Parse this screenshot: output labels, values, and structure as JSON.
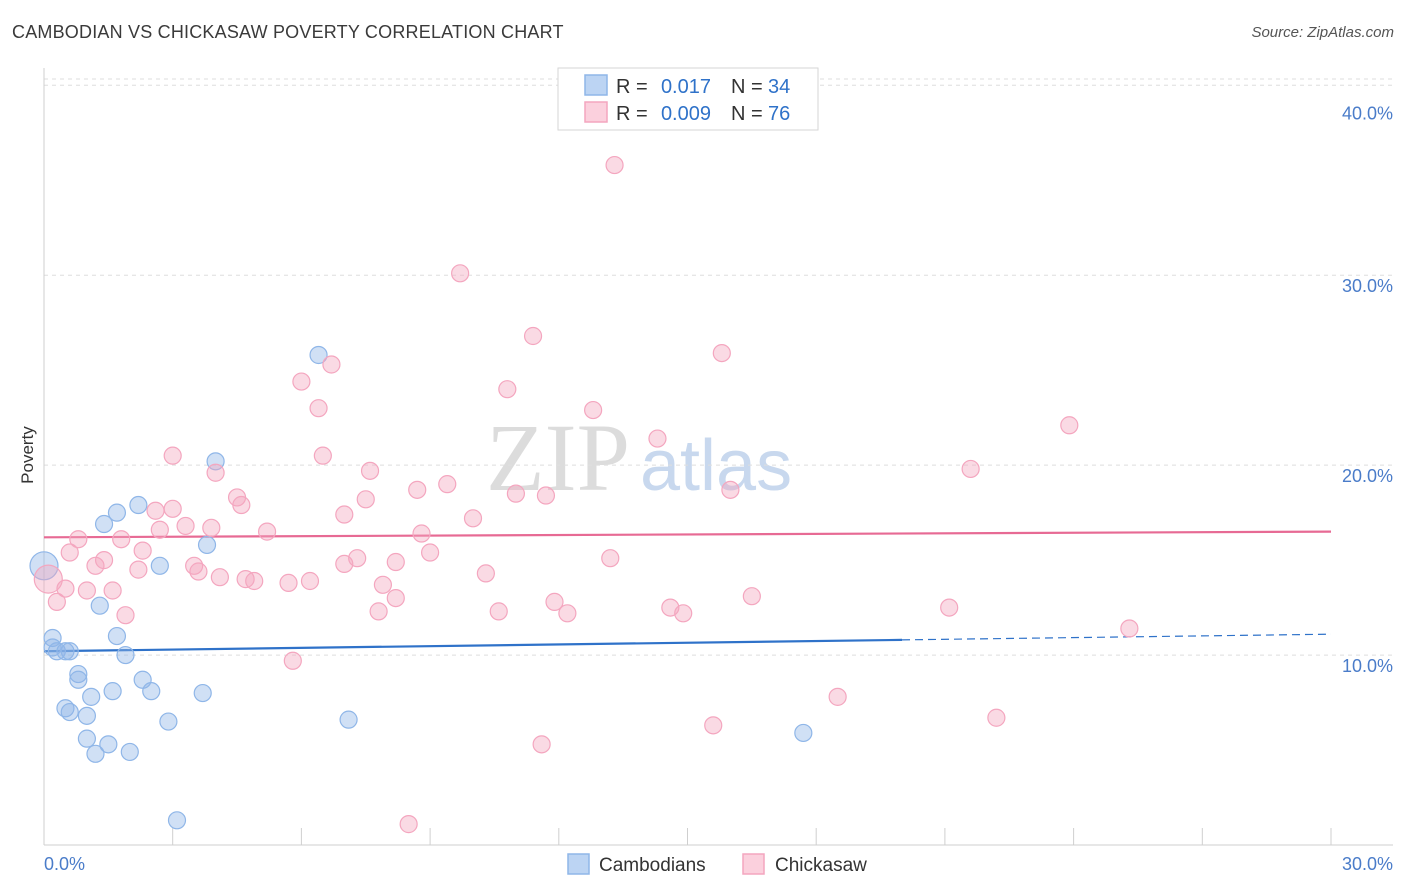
{
  "chart_data": {
    "type": "scatter",
    "title": "CAMBODIAN VS CHICKASAW POVERTY CORRELATION CHART",
    "source": "Source: ZipAtlas.com",
    "ylabel": "Poverty",
    "xlabel": "",
    "xlim": [
      0,
      30
    ],
    "ylim": [
      0,
      40.7
    ],
    "x_tick_labels": [
      "0.0%",
      "30.0%"
    ],
    "y_ticks": [
      {
        "value": 10,
        "label": "10.0%"
      },
      {
        "value": 20,
        "label": "20.0%"
      },
      {
        "value": 30,
        "label": "30.0%"
      },
      {
        "value": 40,
        "label": "40.0%"
      }
    ],
    "watermark": {
      "zip": "ZIP",
      "atlas": "atlas"
    },
    "legend": [
      {
        "r_label": "R =",
        "r_value": "0.017",
        "n_label": "N =",
        "n_value": "34"
      },
      {
        "r_label": "R =",
        "r_value": "0.009",
        "n_label": "N =",
        "n_value": "76"
      }
    ],
    "series": [
      {
        "name": "Cambodians",
        "color": "#8fb6e8",
        "line_color": "#2f72c9",
        "trend": {
          "x0": 0,
          "y0": 10.2,
          "x1": 20,
          "y1": 10.8,
          "dash_x1": 30,
          "dash_y1": 11.1
        },
        "points": [
          [
            0.0,
            14.7
          ],
          [
            0.2,
            10.9
          ],
          [
            0.2,
            10.4
          ],
          [
            0.3,
            10.2
          ],
          [
            0.5,
            10.2
          ],
          [
            0.6,
            10.2
          ],
          [
            0.8,
            9.0
          ],
          [
            0.8,
            8.7
          ],
          [
            0.5,
            7.2
          ],
          [
            0.6,
            7.0
          ],
          [
            1.0,
            6.8
          ],
          [
            1.1,
            7.8
          ],
          [
            1.0,
            5.6
          ],
          [
            1.2,
            4.8
          ],
          [
            1.5,
            5.3
          ],
          [
            2.0,
            4.9
          ],
          [
            1.3,
            12.6
          ],
          [
            1.4,
            16.9
          ],
          [
            1.7,
            17.5
          ],
          [
            1.7,
            11.0
          ],
          [
            1.9,
            10.0
          ],
          [
            2.2,
            17.9
          ],
          [
            2.3,
            8.7
          ],
          [
            2.5,
            8.1
          ],
          [
            2.7,
            14.7
          ],
          [
            1.6,
            8.1
          ],
          [
            2.9,
            6.5
          ],
          [
            3.1,
            1.3
          ],
          [
            3.7,
            8.0
          ],
          [
            3.8,
            15.8
          ],
          [
            4.0,
            20.2
          ],
          [
            6.4,
            25.8
          ],
          [
            7.1,
            6.6
          ],
          [
            17.7,
            5.9
          ]
        ]
      },
      {
        "name": "Chickasaw",
        "color": "#f4a6bf",
        "line_color": "#e76a94",
        "trend": {
          "x0": 0,
          "y0": 16.2,
          "x1": 30,
          "y1": 16.5
        },
        "points": [
          [
            0.1,
            14.0
          ],
          [
            0.3,
            12.8
          ],
          [
            0.5,
            13.5
          ],
          [
            0.6,
            15.4
          ],
          [
            0.8,
            16.1
          ],
          [
            1.0,
            13.4
          ],
          [
            1.2,
            14.7
          ],
          [
            1.4,
            15.0
          ],
          [
            1.6,
            13.4
          ],
          [
            1.8,
            16.1
          ],
          [
            1.9,
            12.1
          ],
          [
            2.2,
            14.5
          ],
          [
            2.3,
            15.5
          ],
          [
            2.6,
            17.6
          ],
          [
            2.7,
            16.6
          ],
          [
            3.0,
            17.7
          ],
          [
            3.0,
            20.5
          ],
          [
            3.3,
            16.8
          ],
          [
            3.5,
            14.7
          ],
          [
            3.6,
            14.4
          ],
          [
            3.9,
            16.7
          ],
          [
            4.0,
            19.6
          ],
          [
            4.1,
            14.1
          ],
          [
            4.5,
            18.3
          ],
          [
            4.6,
            17.9
          ],
          [
            4.7,
            14.0
          ],
          [
            4.9,
            13.9
          ],
          [
            5.2,
            16.5
          ],
          [
            5.7,
            13.8
          ],
          [
            5.8,
            9.7
          ],
          [
            6.0,
            24.4
          ],
          [
            6.2,
            13.9
          ],
          [
            6.4,
            23.0
          ],
          [
            6.5,
            20.5
          ],
          [
            6.7,
            25.3
          ],
          [
            7.0,
            14.8
          ],
          [
            7.0,
            17.4
          ],
          [
            7.3,
            15.1
          ],
          [
            7.5,
            18.2
          ],
          [
            7.6,
            19.7
          ],
          [
            7.8,
            12.3
          ],
          [
            7.9,
            13.7
          ],
          [
            8.2,
            13.0
          ],
          [
            8.2,
            14.9
          ],
          [
            8.5,
            1.1
          ],
          [
            8.7,
            18.7
          ],
          [
            8.8,
            16.4
          ],
          [
            9.0,
            15.4
          ],
          [
            9.4,
            19.0
          ],
          [
            9.7,
            30.1
          ],
          [
            10.0,
            17.2
          ],
          [
            10.3,
            14.3
          ],
          [
            10.6,
            12.3
          ],
          [
            10.8,
            24.0
          ],
          [
            11.0,
            18.5
          ],
          [
            11.4,
            26.8
          ],
          [
            11.6,
            5.3
          ],
          [
            11.7,
            18.4
          ],
          [
            11.9,
            12.8
          ],
          [
            12.2,
            12.2
          ],
          [
            12.8,
            22.9
          ],
          [
            13.2,
            15.1
          ],
          [
            13.3,
            35.8
          ],
          [
            14.3,
            21.4
          ],
          [
            14.6,
            12.5
          ],
          [
            14.9,
            12.2
          ],
          [
            15.6,
            6.3
          ],
          [
            15.8,
            25.9
          ],
          [
            16.0,
            18.7
          ],
          [
            16.5,
            13.1
          ],
          [
            18.5,
            7.8
          ],
          [
            21.1,
            12.5
          ],
          [
            21.6,
            19.8
          ],
          [
            22.2,
            6.7
          ],
          [
            23.9,
            22.1
          ],
          [
            25.3,
            11.4
          ]
        ]
      }
    ]
  }
}
